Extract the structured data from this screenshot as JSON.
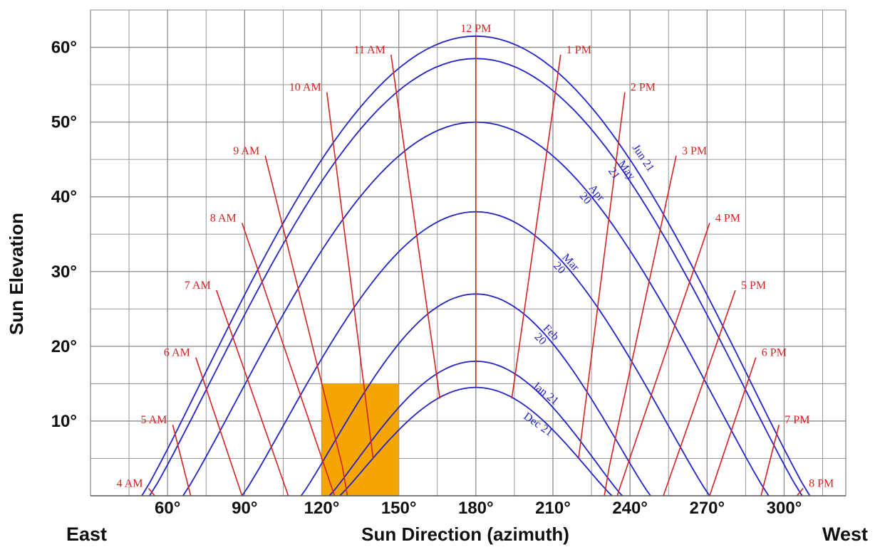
{
  "chart_data": {
    "type": "line",
    "title": "",
    "xlabel": "Sun Direction (azimuth)",
    "ylabel": "Sun Elevation",
    "x_left_label": "East",
    "x_right_label": "West",
    "xlim": [
      30,
      324
    ],
    "ylim": [
      0,
      65
    ],
    "grid": true,
    "x_ticks": [
      60,
      90,
      120,
      150,
      180,
      210,
      240,
      270,
      300
    ],
    "x_tick_labels": [
      "60°",
      "90°",
      "120°",
      "150°",
      "180°",
      "210°",
      "240°",
      "270°",
      "300°"
    ],
    "y_ticks": [
      10,
      20,
      30,
      40,
      50,
      60
    ],
    "y_tick_labels": [
      "10°",
      "20°",
      "30°",
      "40°",
      "50°",
      "60°"
    ],
    "colors": {
      "date_curves": "#2323c8",
      "hour_lines": "#d82020",
      "highlight": "#f5a500",
      "grid": "#8c8c8c"
    },
    "date_curves": [
      {
        "name": "Jun 21",
        "label_lines": [
          "Jun 21"
        ],
        "rise_az": 50,
        "set_az": 310,
        "max_elev": 61.5
      },
      {
        "name": "May 21",
        "label_lines": [
          "May",
          "21"
        ],
        "rise_az": 53,
        "set_az": 307,
        "max_elev": 58.5
      },
      {
        "name": "Apr 20",
        "label_lines": [
          "Apr",
          "20"
        ],
        "rise_az": 66,
        "set_az": 294,
        "max_elev": 50
      },
      {
        "name": "Mar 20",
        "label_lines": [
          "Mar",
          "20"
        ],
        "rise_az": 89,
        "set_az": 271,
        "max_elev": 38
      },
      {
        "name": "Feb 20",
        "label_lines": [
          "Feb",
          "20"
        ],
        "rise_az": 112,
        "set_az": 248,
        "max_elev": 27
      },
      {
        "name": "Jan 21",
        "label_lines": [
          "Jan 21"
        ],
        "rise_az": 123,
        "set_az": 237,
        "max_elev": 18
      },
      {
        "name": "Dec 21",
        "label_lines": [
          "Dec 21"
        ],
        "rise_az": 127,
        "set_az": 233,
        "max_elev": 14.5
      }
    ],
    "hour_lines": [
      {
        "label": "4 AM",
        "points": [
          [
            52.6,
            1
          ],
          [
            55,
            0
          ]
        ]
      },
      {
        "label": "5 AM",
        "points": [
          [
            62,
            9.5
          ],
          [
            69,
            0
          ]
        ]
      },
      {
        "label": "6 AM",
        "points": [
          [
            71,
            18.5
          ],
          [
            89,
            0
          ]
        ]
      },
      {
        "label": "7 AM",
        "points": [
          [
            79,
            27.5
          ],
          [
            107,
            0
          ]
        ]
      },
      {
        "label": "8 AM",
        "points": [
          [
            89,
            36.5
          ],
          [
            125,
            0
          ]
        ]
      },
      {
        "label": "9 AM",
        "points": [
          [
            98,
            45.5
          ],
          [
            128,
            4
          ],
          [
            130,
            0
          ]
        ]
      },
      {
        "label": "10 AM",
        "points": [
          [
            122,
            54
          ],
          [
            140,
            5
          ]
        ]
      },
      {
        "label": "11 AM",
        "points": [
          [
            147,
            59
          ],
          [
            166,
            13
          ]
        ]
      },
      {
        "label": "12 PM",
        "points": [
          [
            180,
            61.5
          ],
          [
            180,
            14.5
          ]
        ]
      },
      {
        "label": "1 PM",
        "points": [
          [
            213,
            59
          ],
          [
            194,
            13
          ]
        ]
      },
      {
        "label": "2 PM",
        "points": [
          [
            238,
            54
          ],
          [
            220,
            5
          ]
        ]
      },
      {
        "label": "3 PM",
        "points": [
          [
            258,
            45.5
          ],
          [
            232,
            4
          ],
          [
            230,
            0
          ]
        ]
      },
      {
        "label": "4 PM",
        "points": [
          [
            271,
            36.5
          ],
          [
            235,
            0
          ]
        ]
      },
      {
        "label": "5 PM",
        "points": [
          [
            281,
            27.5
          ],
          [
            253,
            0
          ]
        ]
      },
      {
        "label": "6 PM",
        "points": [
          [
            289,
            18.5
          ],
          [
            271,
            0
          ]
        ]
      },
      {
        "label": "7 PM",
        "points": [
          [
            298,
            9.5
          ],
          [
            291,
            0
          ]
        ]
      },
      {
        "label": "8 PM",
        "points": [
          [
            307.4,
            1
          ],
          [
            305,
            0
          ]
        ]
      }
    ],
    "highlight": {
      "az": [
        120,
        150
      ],
      "elev": [
        0,
        15
      ]
    }
  }
}
